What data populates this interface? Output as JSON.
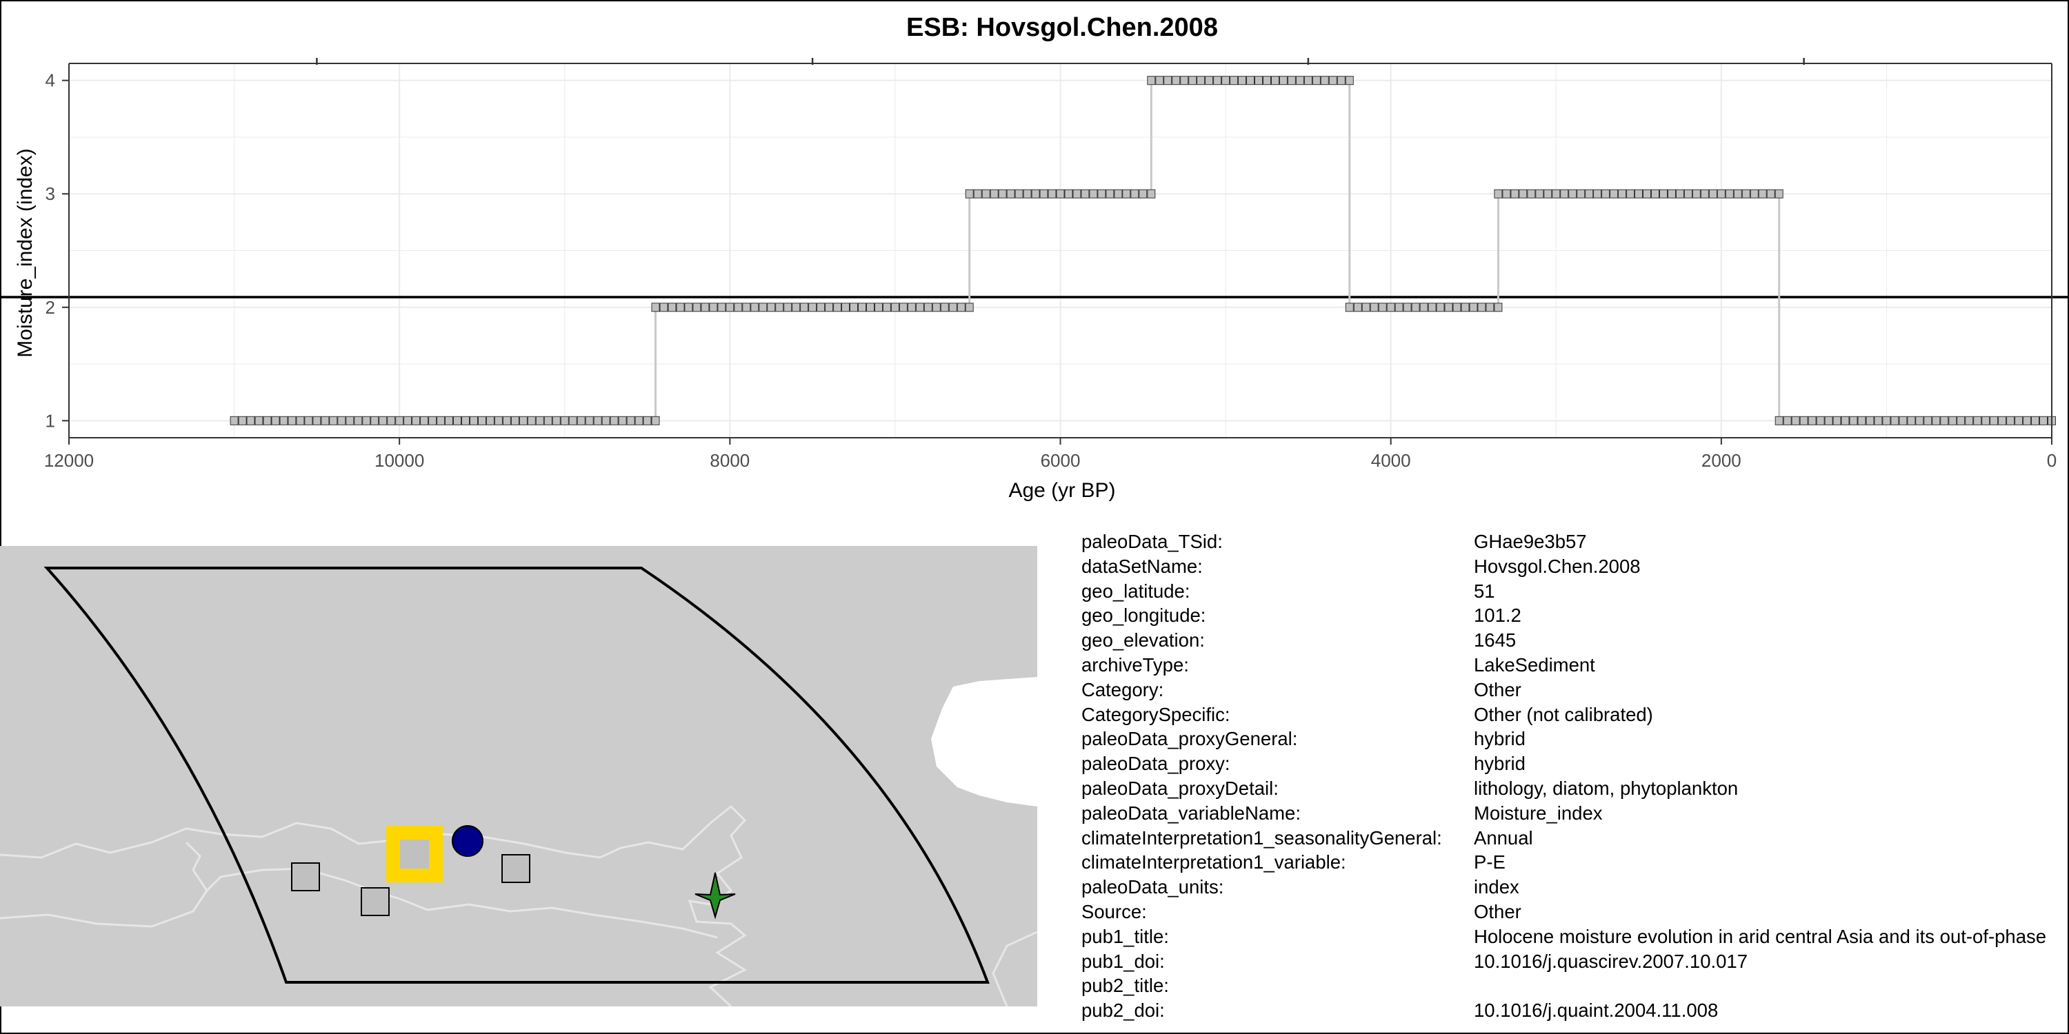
{
  "chart_data": {
    "type": "line",
    "title": "ESB: Hovsgol.Chen.2008",
    "xlabel": "Age (yr BP)",
    "ylabel": "Moisture_index (index)",
    "x_reversed": true,
    "xlim": [
      12000,
      0
    ],
    "ylim": [
      0.85,
      4.15
    ],
    "x_ticks": [
      12000,
      10000,
      8000,
      6000,
      4000,
      2000,
      0
    ],
    "x_tick_labels": [
      "12000",
      "10000",
      "8000",
      "6000",
      "4000",
      "2000",
      "0"
    ],
    "y_ticks": [
      1,
      2,
      3,
      4
    ],
    "y_tick_labels": [
      "1",
      "2",
      "3",
      "4"
    ],
    "grid": true,
    "reference_line_y": 2.09,
    "series_color": "#c0c0c0",
    "segments": [
      {
        "x_start": 11000,
        "x_end": 8450,
        "value": 1
      },
      {
        "x_start": 8450,
        "x_end": 6550,
        "value": 2
      },
      {
        "x_start": 6550,
        "x_end": 5450,
        "value": 3
      },
      {
        "x_start": 5450,
        "x_end": 4250,
        "value": 4
      },
      {
        "x_start": 4250,
        "x_end": 3350,
        "value": 2
      },
      {
        "x_start": 3350,
        "x_end": 1650,
        "value": 3
      },
      {
        "x_start": 1650,
        "x_end": 0,
        "value": 1
      }
    ],
    "sample_step": 50
  },
  "map": {
    "land_color": "#cccccc",
    "border_color": "#e6e6e6",
    "box_color": "#000000",
    "target_marker": {
      "shape": "square",
      "color": "#ffd700"
    },
    "other_marker": {
      "shape": "square",
      "color": "#c0c0c0"
    },
    "circle_marker": {
      "shape": "circle",
      "color": "#00008b"
    },
    "star_marker": {
      "shape": "star",
      "color": "#228b22"
    }
  },
  "metadata": [
    {
      "key": "paleoData_TSid:",
      "value": "GHae9e3b57"
    },
    {
      "key": "dataSetName:",
      "value": "Hovsgol.Chen.2008"
    },
    {
      "key": "geo_latitude:",
      "value": "51"
    },
    {
      "key": "geo_longitude:",
      "value": "101.2"
    },
    {
      "key": "geo_elevation:",
      "value": "1645"
    },
    {
      "key": "archiveType:",
      "value": "LakeSediment"
    },
    {
      "key": "Category:",
      "value": "Other"
    },
    {
      "key": "CategorySpecific:",
      "value": "Other (not calibrated)"
    },
    {
      "key": "paleoData_proxyGeneral:",
      "value": "hybrid"
    },
    {
      "key": "paleoData_proxy:",
      "value": "hybrid"
    },
    {
      "key": "paleoData_proxyDetail:",
      "value": "lithology, diatom, phytoplankton"
    },
    {
      "key": "paleoData_variableName:",
      "value": "Moisture_index"
    },
    {
      "key": "climateInterpretation1_seasonalityGeneral:",
      "value": "Annual"
    },
    {
      "key": "climateInterpretation1_variable:",
      "value": "P-E"
    },
    {
      "key": "paleoData_units:",
      "value": "index"
    },
    {
      "key": "Source:",
      "value": "Other"
    },
    {
      "key": "pub1_title:",
      "value": "Holocene moisture evolution in arid central Asia and its out-of-phase"
    },
    {
      "key": "pub1_doi:",
      "value": "10.1016/j.quascirev.2007.10.017"
    },
    {
      "key": "pub2_title:",
      "value": ""
    },
    {
      "key": "pub2_doi:",
      "value": "10.1016/j.quaint.2004.11.008"
    }
  ]
}
